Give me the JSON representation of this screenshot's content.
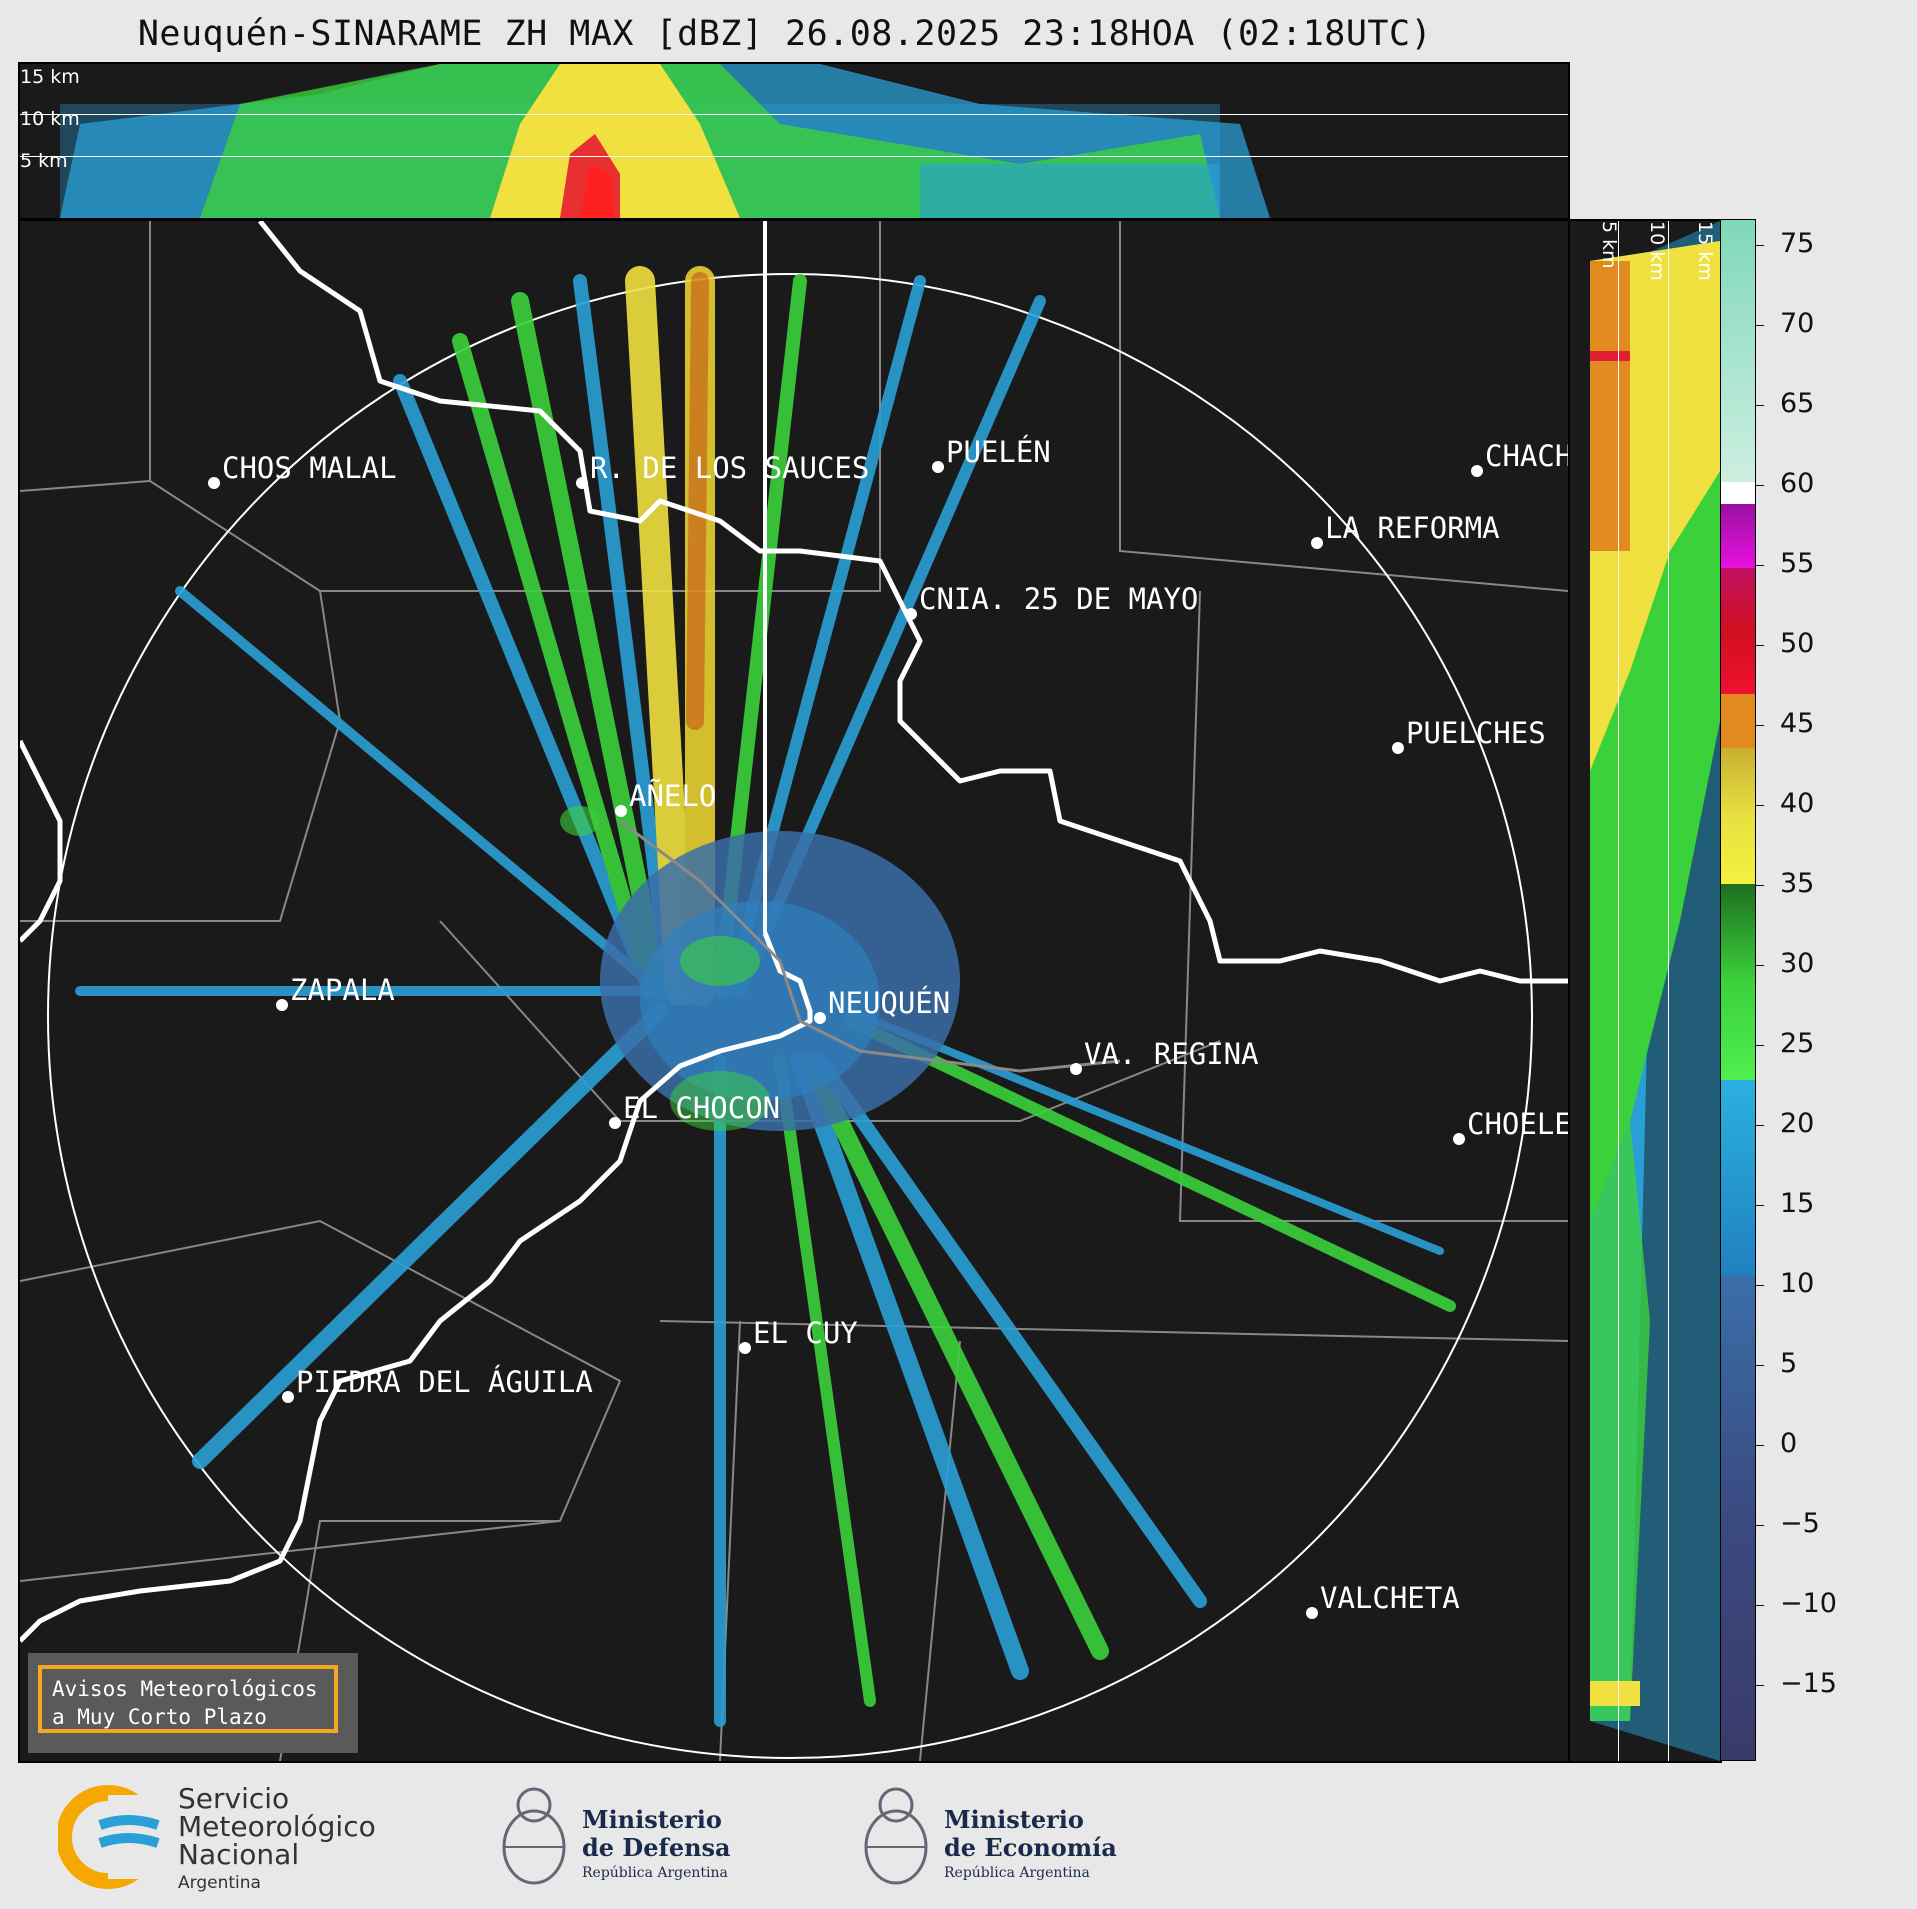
{
  "title": "Neuquén-SINARAME ZH MAX [dBZ] 26.08.2025 23:18HOA (02:18UTC)",
  "top_section": {
    "labels": [
      "15 km",
      "10 km",
      "5 km"
    ]
  },
  "right_section": {
    "labels": [
      "5 km",
      "10 km",
      "15 km"
    ]
  },
  "cities": [
    {
      "name": "CHOS MALAL"
    },
    {
      "name": "R. DE LOS SAUCES"
    },
    {
      "name": "PUELÉN"
    },
    {
      "name": "CHACH"
    },
    {
      "name": "LA REFORMA"
    },
    {
      "name": "CNIA. 25 DE MAYO"
    },
    {
      "name": "PUELCHES"
    },
    {
      "name": "AÑELO"
    },
    {
      "name": "ZAPALA"
    },
    {
      "name": "NEUQUÉN"
    },
    {
      "name": "VA. REGINA"
    },
    {
      "name": "EL CHOCON"
    },
    {
      "name": "CHOELE"
    },
    {
      "name": "EL CUY"
    },
    {
      "name": "PIEDRA DEL ÁGUILA"
    },
    {
      "name": "VALCHETA"
    }
  ],
  "colorbar": {
    "unit": "dBZ",
    "ticks": [
      "75",
      "70",
      "65",
      "60",
      "55",
      "50",
      "45",
      "40",
      "35",
      "30",
      "25",
      "20",
      "15",
      "10",
      "5",
      "0",
      "−5",
      "−10",
      "−15"
    ],
    "range": [
      -20,
      77
    ]
  },
  "aviso": {
    "line1": "Avisos Meteorológicos",
    "line2": "a Muy Corto Plazo"
  },
  "logos": {
    "smn": {
      "line1": "Servicio",
      "line2": "Meteorológico",
      "line3": "Nacional",
      "line4": "Argentina"
    },
    "defensa": {
      "line1": "Ministerio",
      "line2": "de Defensa",
      "line3": "República Argentina"
    },
    "economia": {
      "line1": "Ministerio",
      "line2": "de Economía",
      "line3": "República Argentina"
    }
  }
}
